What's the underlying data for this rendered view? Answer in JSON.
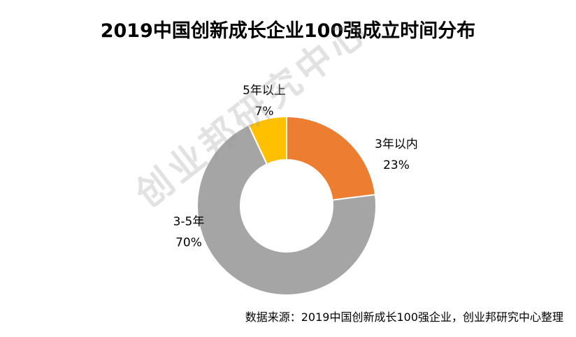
{
  "chart_data": {
    "type": "pie",
    "donut": true,
    "title": "2019中国创新成长企业100强成立时间分布",
    "slices": [
      {
        "label": "3年以内",
        "value": 23,
        "value_text": "23%",
        "color": "#ED7D31"
      },
      {
        "label": "3-5年",
        "value": 70,
        "value_text": "70%",
        "color": "#A5A5A5"
      },
      {
        "label": "5年以上",
        "value": 7,
        "value_text": "7%",
        "color": "#FFC000"
      }
    ],
    "start": "12 o'clock",
    "direction": "clockwise",
    "legend": "none"
  },
  "source_note": "数据来源：2019中国创新成长100强企业，创业邦研究中心整理",
  "watermark": "创业邦研究中心"
}
